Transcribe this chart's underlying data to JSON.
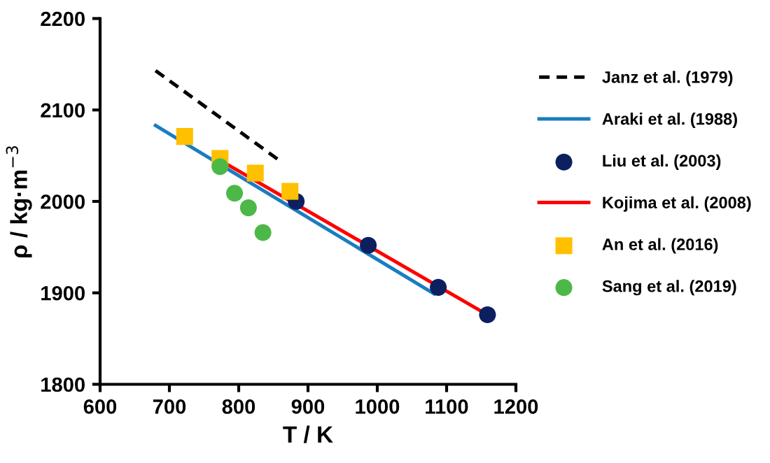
{
  "chart_data": {
    "type": "line",
    "xlabel": "T / K",
    "ylabel": "ρ / kg·m$^{−3}$",
    "xlim": [
      600,
      1200
    ],
    "ylim": [
      1800,
      2200
    ],
    "xticks": [
      600,
      700,
      800,
      900,
      1000,
      1100,
      1200
    ],
    "yticks": [
      1800,
      1900,
      2000,
      2100,
      2200
    ],
    "grid": false,
    "legend": "right",
    "series": [
      {
        "name": "Janz et al. (1979)",
        "line_style": "dashed",
        "marker": "none",
        "color": "#000000",
        "x": [
          680,
          862
        ],
        "values": [
          2143,
          2043
        ]
      },
      {
        "name": "Araki et al. (1988)",
        "line_style": "solid",
        "marker": "none",
        "color": "#1a7dc0",
        "x": [
          680,
          1082
        ],
        "values": [
          2083,
          1899
        ]
      },
      {
        "name": "Liu et al. (2003)",
        "type": "scatter",
        "marker": "circle",
        "color": "#0c1f5e",
        "x": [
          883,
          987,
          1088,
          1159
        ],
        "values": [
          2000,
          1952,
          1906,
          1876
        ]
      },
      {
        "name": "Kojima et al. (2008)",
        "line_style": "solid",
        "marker": "none",
        "color": "#ff0000",
        "x": [
          780,
          1159
        ],
        "values": [
          2042,
          1876
        ]
      },
      {
        "name": "An et al. (2016)",
        "type": "scatter",
        "marker": "square",
        "color": "#ffc000",
        "x": [
          722,
          773,
          824,
          874
        ],
        "values": [
          2071,
          2047,
          2031,
          2011
        ]
      },
      {
        "name": "Sang et al. (2019)",
        "type": "scatter",
        "marker": "circle",
        "color": "#4cb848",
        "x": [
          773,
          794,
          814,
          835
        ],
        "values": [
          2038,
          2009,
          1993,
          1966
        ]
      }
    ]
  }
}
